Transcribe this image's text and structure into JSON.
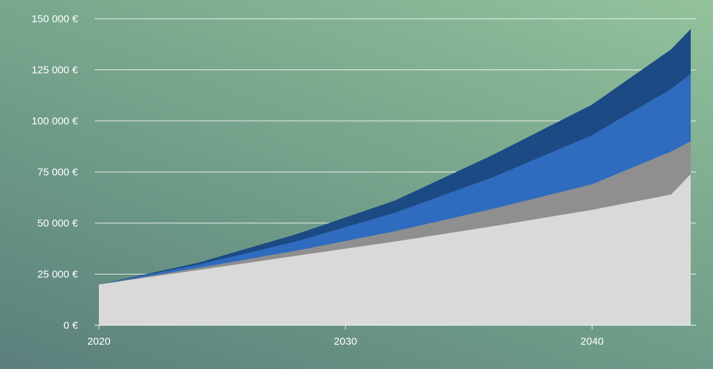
{
  "chart_data": {
    "type": "area",
    "stacked": true,
    "title": "",
    "xlabel": "",
    "ylabel": "",
    "x_ticks": [
      2020,
      2030,
      2040
    ],
    "x_tick_labels": [
      "2020",
      "2030",
      "2040"
    ],
    "xlim": [
      2020,
      2044
    ],
    "ylim": [
      0,
      150000
    ],
    "y_ticks": [
      0,
      25000,
      50000,
      75000,
      100000,
      125000,
      150000
    ],
    "y_tick_labels": [
      "0 €",
      "25 000 €",
      "50 000 €",
      "75 000 €",
      "100 000 €",
      "125 000 €",
      "150 000 €"
    ],
    "grid": true,
    "legend": "none",
    "x": [
      2020,
      2024,
      2028,
      2032,
      2036,
      2040,
      2043.2,
      2044
    ],
    "series": [
      {
        "color": "#d9d9d9",
        "values": [
          20000,
          27000,
          34000,
          41000,
          48500,
          56500,
          64000,
          74000
        ]
      },
      {
        "color": "#8f8f8f",
        "values": [
          0,
          1000,
          2500,
          5000,
          8500,
          12500,
          21000,
          16000
        ]
      },
      {
        "color": "#2f6bbf",
        "values": [
          0,
          1500,
          4500,
          9000,
          15500,
          24000,
          30500,
          33000
        ]
      },
      {
        "color": "#1b4a85",
        "values": [
          0,
          1000,
          3500,
          6000,
          11000,
          15000,
          19500,
          22000
        ]
      }
    ]
  }
}
